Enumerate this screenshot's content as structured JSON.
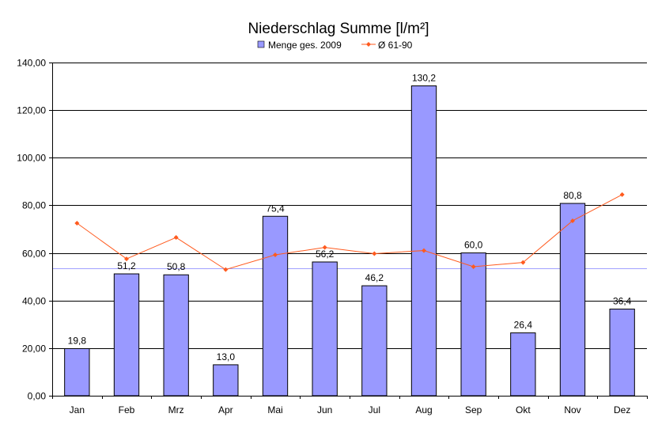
{
  "chart_data": {
    "type": "bar",
    "title": "Niederschlag Summe [l/m²]",
    "categories": [
      "Jan",
      "Feb",
      "Mrz",
      "Apr",
      "Mai",
      "Jun",
      "Jul",
      "Aug",
      "Sep",
      "Okt",
      "Nov",
      "Dez"
    ],
    "series": [
      {
        "name": "Menge ges. 2009",
        "type": "bar",
        "color": "#9999ff",
        "values": [
          19.8,
          51.2,
          50.8,
          13.0,
          75.4,
          56.2,
          46.2,
          130.2,
          60.0,
          26.4,
          80.8,
          36.4
        ],
        "labels": [
          "19,8",
          "51,2",
          "50,8",
          "13,0",
          "75,4",
          "56,2",
          "46,2",
          "130,2",
          "60,0",
          "26,4",
          "80,8",
          "36,4"
        ]
      },
      {
        "name": "Ø 61-90",
        "type": "line",
        "color": "#ff5a1e",
        "values": [
          72.5,
          57.5,
          66.5,
          53.0,
          59.2,
          62.3,
          59.7,
          61.0,
          54.2,
          56.0,
          73.5,
          84.5
        ]
      }
    ],
    "reference_line": {
      "value": 53.7,
      "color": "#a0a0ff"
    },
    "ylim": [
      0,
      140
    ],
    "yticks": [
      0,
      20,
      40,
      60,
      80,
      100,
      120,
      140
    ],
    "ytick_labels": [
      "0,00",
      "20,00",
      "40,00",
      "60,00",
      "80,00",
      "100,00",
      "120,00",
      "140,00"
    ],
    "grid": true,
    "legend_position": "top-center"
  }
}
